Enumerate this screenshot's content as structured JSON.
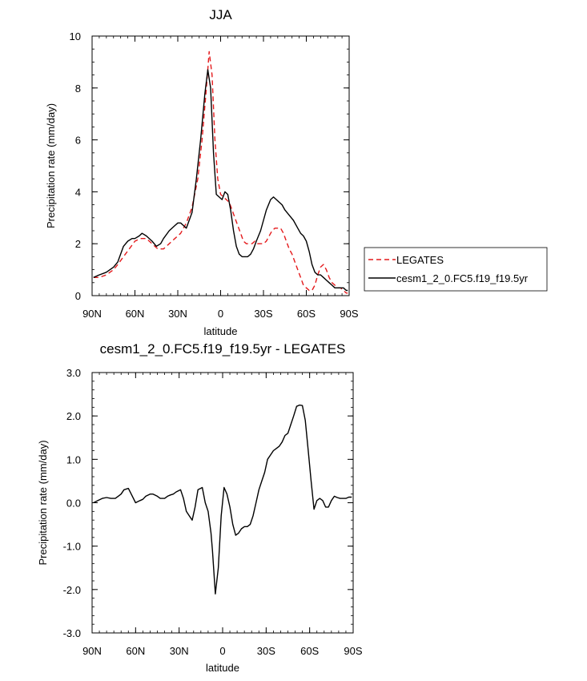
{
  "chart_data": [
    {
      "type": "line",
      "title": "JJA",
      "xlabel": "latitude",
      "ylabel": "Precipitation rate (mm/day)",
      "xlim": [
        -90,
        90
      ],
      "ylim": [
        0,
        10
      ],
      "xticks": [
        {
          "v": -90,
          "label": "90N"
        },
        {
          "v": -60,
          "label": "60N"
        },
        {
          "v": -30,
          "label": "30N"
        },
        {
          "v": 0,
          "label": "0"
        },
        {
          "v": 30,
          "label": "30S"
        },
        {
          "v": 60,
          "label": "60S"
        },
        {
          "v": 90,
          "label": "90S"
        }
      ],
      "yticks": [
        {
          "v": 0,
          "label": "0"
        },
        {
          "v": 2,
          "label": "2"
        },
        {
          "v": 4,
          "label": "4"
        },
        {
          "v": 6,
          "label": "6"
        },
        {
          "v": 8,
          "label": "8"
        },
        {
          "v": 10,
          "label": "10"
        }
      ],
      "legend": "right",
      "series": [
        {
          "name": "LEGATES",
          "color": "#e41a1c",
          "style": "dashed",
          "x": [
            -89,
            -85,
            -80,
            -75,
            -72,
            -68,
            -64,
            -60,
            -56,
            -52,
            -48,
            -44,
            -40,
            -36,
            -32,
            -28,
            -24,
            -20,
            -16,
            -13,
            -10,
            -8,
            -6,
            -4,
            -2,
            0,
            2,
            4,
            6,
            8,
            10,
            12,
            14,
            16,
            18,
            20,
            22,
            24,
            26,
            28,
            30,
            32,
            34,
            36,
            38,
            40,
            42,
            44,
            46,
            48,
            50,
            52,
            54,
            56,
            58,
            60,
            62,
            64,
            66,
            68,
            70,
            72,
            74,
            76,
            78,
            80,
            82,
            84,
            86,
            88,
            89
          ],
          "y": [
            0.7,
            0.7,
            0.8,
            1.0,
            1.2,
            1.5,
            1.8,
            2.1,
            2.2,
            2.2,
            2.0,
            1.8,
            1.8,
            2.0,
            2.2,
            2.4,
            2.8,
            3.4,
            4.5,
            6.0,
            8.0,
            9.4,
            8.5,
            6.0,
            4.5,
            3.9,
            3.8,
            3.7,
            3.6,
            3.3,
            3.0,
            2.7,
            2.4,
            2.1,
            2.0,
            2.0,
            2.0,
            2.1,
            2.0,
            2.0,
            2.0,
            2.1,
            2.3,
            2.5,
            2.6,
            2.6,
            2.6,
            2.4,
            2.1,
            1.8,
            1.6,
            1.3,
            1.0,
            0.7,
            0.4,
            0.3,
            0.2,
            0.2,
            0.4,
            0.8,
            1.1,
            1.2,
            1.0,
            0.7,
            0.5,
            0.4,
            0.3,
            0.3,
            0.2,
            0.1,
            0.1
          ]
        },
        {
          "name": "cesm1_2_0.FC5.f19_f19.5yr",
          "color": "#000000",
          "style": "solid",
          "x": [
            -89,
            -85,
            -80,
            -75,
            -72,
            -68,
            -65,
            -62,
            -60,
            -57,
            -55,
            -52,
            -48,
            -45,
            -42,
            -40,
            -36,
            -32,
            -30,
            -28,
            -26,
            -24,
            -20,
            -17,
            -14,
            -11,
            -9,
            -7,
            -5,
            -3,
            -1,
            1,
            3,
            5,
            7,
            9,
            11,
            13,
            15,
            17,
            19,
            21,
            23,
            25,
            28,
            30,
            32,
            35,
            37,
            39,
            41,
            43,
            45,
            48,
            51,
            54,
            56,
            58,
            60,
            62,
            64,
            66,
            68,
            70,
            72,
            74,
            76,
            78,
            80,
            82,
            84,
            86,
            88,
            89
          ],
          "y": [
            0.7,
            0.8,
            0.9,
            1.1,
            1.3,
            1.9,
            2.1,
            2.2,
            2.2,
            2.3,
            2.4,
            2.3,
            2.1,
            1.9,
            2.0,
            2.2,
            2.5,
            2.7,
            2.8,
            2.8,
            2.7,
            2.6,
            3.2,
            4.5,
            6.0,
            7.8,
            8.7,
            8.0,
            5.5,
            3.9,
            3.8,
            3.7,
            4.0,
            3.9,
            3.3,
            2.5,
            1.9,
            1.6,
            1.5,
            1.5,
            1.5,
            1.6,
            1.8,
            2.1,
            2.5,
            2.9,
            3.3,
            3.7,
            3.8,
            3.7,
            3.6,
            3.5,
            3.3,
            3.1,
            2.9,
            2.6,
            2.4,
            2.3,
            2.1,
            1.7,
            1.2,
            0.9,
            0.8,
            0.8,
            0.7,
            0.6,
            0.5,
            0.4,
            0.3,
            0.3,
            0.3,
            0.3,
            0.2,
            0.2
          ]
        }
      ]
    },
    {
      "type": "line",
      "title": "cesm1_2_0.FC5.f19_f19.5yr - LEGATES",
      "xlabel": "latitude",
      "ylabel": "Precipitation rate (mm/day)",
      "xlim": [
        -90,
        90
      ],
      "ylim": [
        -3,
        3
      ],
      "xticks": [
        {
          "v": -90,
          "label": "90N"
        },
        {
          "v": -60,
          "label": "60N"
        },
        {
          "v": -30,
          "label": "30N"
        },
        {
          "v": 0,
          "label": "0"
        },
        {
          "v": 30,
          "label": "30S"
        },
        {
          "v": 60,
          "label": "60S"
        },
        {
          "v": 90,
          "label": "90S"
        }
      ],
      "yticks": [
        {
          "v": -3,
          "label": "-3.0"
        },
        {
          "v": -2,
          "label": "-2.0"
        },
        {
          "v": -1,
          "label": "-1.0"
        },
        {
          "v": 0,
          "label": "0.0"
        },
        {
          "v": 1,
          "label": "1.0"
        },
        {
          "v": 2,
          "label": "2.0"
        },
        {
          "v": 3,
          "label": "3.0"
        }
      ],
      "series": [
        {
          "color": "#000000",
          "style": "solid",
          "x": [
            -89,
            -86,
            -83,
            -80,
            -77,
            -74,
            -72,
            -70,
            -68,
            -65,
            -63,
            -60,
            -57,
            -55,
            -53,
            -50,
            -48,
            -45,
            -43,
            -40,
            -38,
            -36,
            -34,
            -32,
            -29,
            -27,
            -25,
            -23,
            -21,
            -19,
            -17,
            -14,
            -12,
            -10,
            -8,
            -7,
            -5,
            -3,
            -1,
            1,
            3,
            5,
            7,
            9,
            11,
            13,
            15,
            17,
            19,
            21,
            23,
            25,
            27,
            29,
            31,
            33,
            35,
            37,
            39,
            41,
            43,
            45,
            47,
            49,
            51,
            53,
            55,
            57,
            59,
            61,
            63,
            65,
            67,
            69,
            71,
            73,
            75,
            77,
            79,
            81,
            83,
            85,
            87,
            89
          ],
          "y": [
            0.0,
            0.05,
            0.1,
            0.12,
            0.1,
            0.1,
            0.15,
            0.2,
            0.3,
            0.33,
            0.2,
            0.0,
            0.05,
            0.08,
            0.15,
            0.2,
            0.2,
            0.15,
            0.1,
            0.1,
            0.15,
            0.18,
            0.2,
            0.25,
            0.3,
            0.1,
            -0.2,
            -0.3,
            -0.4,
            -0.1,
            0.3,
            0.35,
            0.0,
            -0.2,
            -0.7,
            -1.1,
            -2.1,
            -1.5,
            -0.3,
            0.35,
            0.2,
            -0.1,
            -0.5,
            -0.75,
            -0.7,
            -0.6,
            -0.55,
            -0.55,
            -0.5,
            -0.3,
            0.0,
            0.3,
            0.5,
            0.7,
            1.0,
            1.1,
            1.2,
            1.25,
            1.3,
            1.4,
            1.55,
            1.6,
            1.8,
            2.0,
            2.22,
            2.25,
            2.24,
            1.9,
            1.2,
            0.5,
            -0.15,
            0.05,
            0.1,
            0.05,
            -0.1,
            -0.1,
            0.05,
            0.15,
            0.12,
            0.1,
            0.1,
            0.1,
            0.13,
            0.13
          ]
        }
      ]
    }
  ]
}
